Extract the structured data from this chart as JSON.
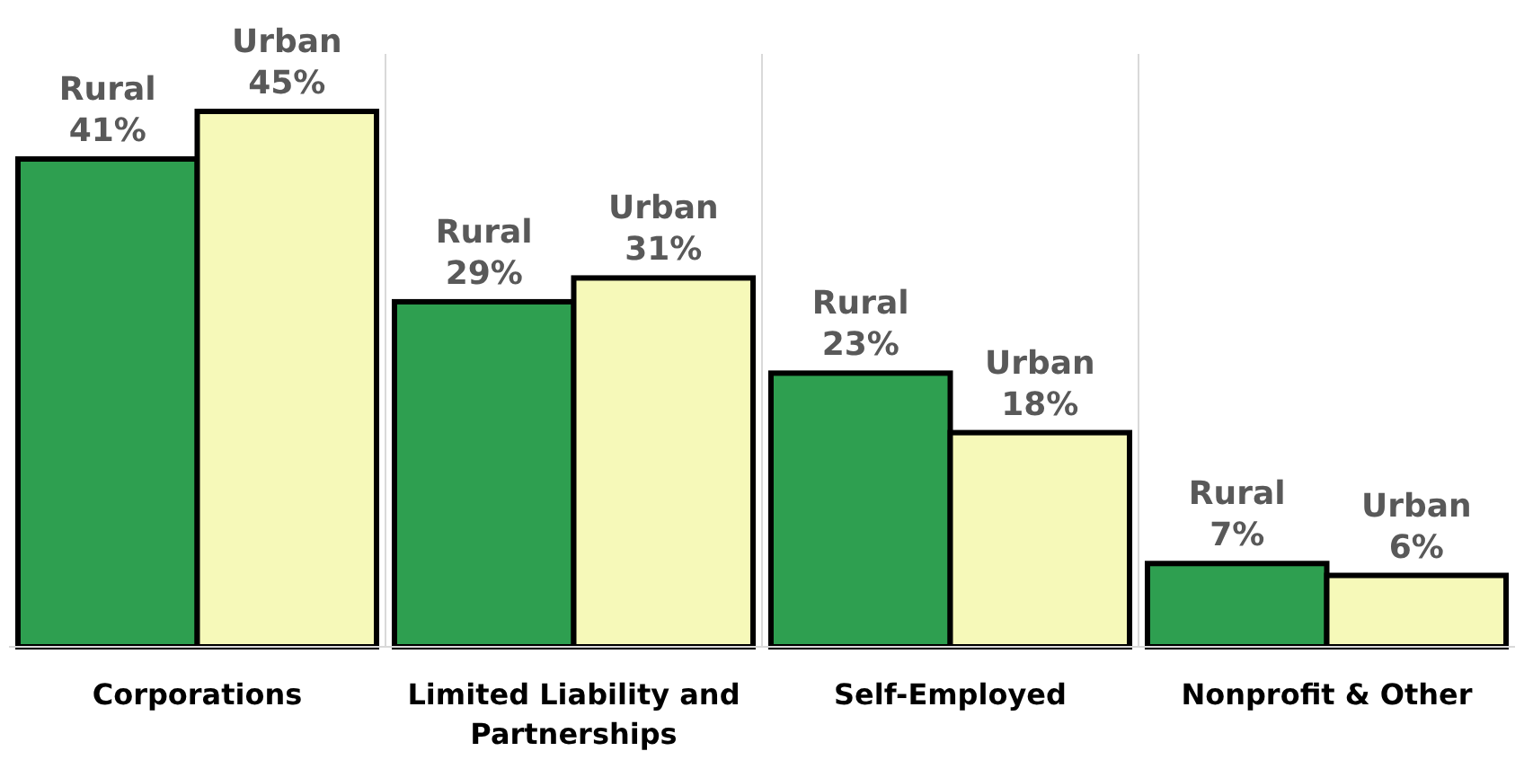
{
  "chart_data": {
    "type": "bar",
    "categories": [
      "Corporations",
      "Limited Liability and Partnerships",
      "Self-Employed",
      "Nonprofit & Other"
    ],
    "grid": "x",
    "series": [
      {
        "name": "Rural",
        "color": "#2e9f50",
        "values": [
          41,
          29,
          23,
          7
        ],
        "value_labels": [
          "41%",
          "29%",
          "23%",
          "7%"
        ]
      },
      {
        "name": "Urban",
        "color": "#f6f9b9",
        "values": [
          45,
          31,
          18,
          6
        ],
        "value_labels": [
          "45%",
          "31%",
          "18%",
          "6%"
        ]
      }
    ]
  }
}
